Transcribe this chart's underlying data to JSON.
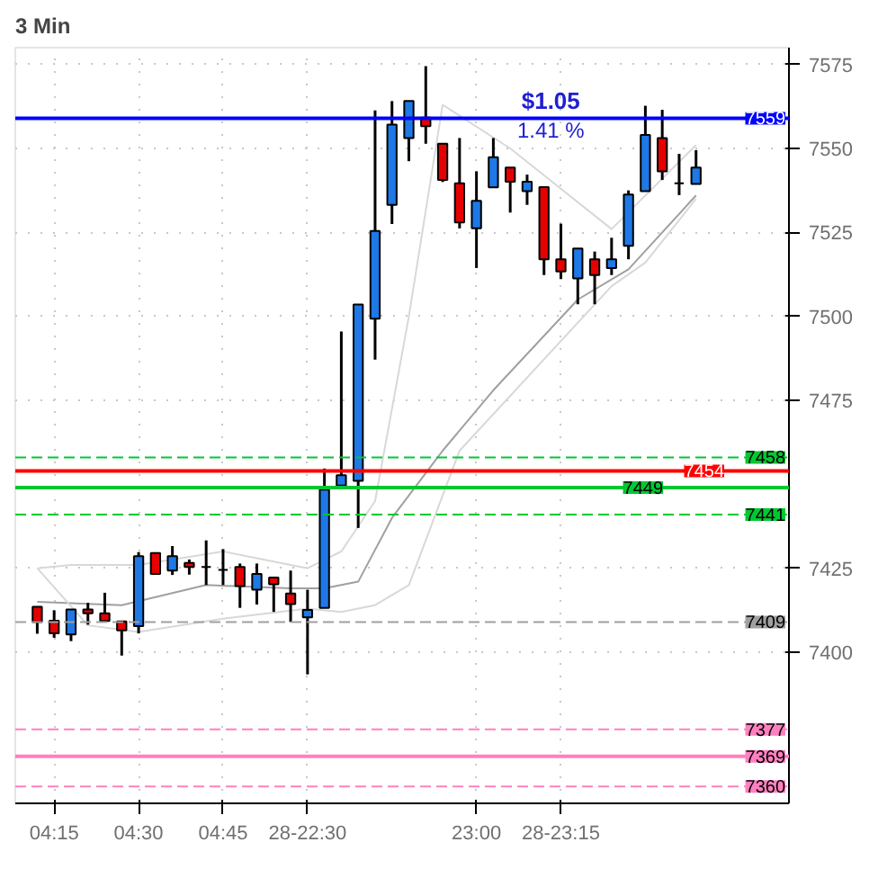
{
  "chart_data": {
    "type": "candlestick",
    "title": "3 Min",
    "categories": [
      null,
      "04:15",
      null,
      null,
      null,
      null,
      "04:30",
      null,
      null,
      null,
      null,
      "04:45",
      null,
      null,
      null,
      null,
      "28-22:30",
      null,
      null,
      null,
      null,
      null,
      null,
      null,
      null,
      null,
      "23:00",
      null,
      null,
      null,
      null,
      "28-23:15",
      null,
      null,
      null,
      null,
      null,
      null,
      null,
      null
    ],
    "ohlc": [
      [
        7413.5,
        7413.5,
        7405.5,
        7409
      ],
      [
        7409.4,
        7412.5,
        7404.3,
        7405.6
      ],
      [
        7405.3,
        7412.7,
        7403.3,
        7412.7
      ],
      [
        7412.7,
        7414.7,
        7408.2,
        7411.6
      ],
      [
        7411.6,
        7417.7,
        7409.3,
        7409.3
      ],
      [
        7409.2,
        7409.2,
        7399,
        7406.5
      ],
      [
        7407.8,
        7429.8,
        7405.6,
        7428.6
      ],
      [
        7429.5,
        7429.5,
        7423.3,
        7423.3
      ],
      [
        7424.3,
        7431.6,
        7423,
        7428.6
      ],
      [
        7426.6,
        7427.6,
        7423.1,
        7425.4
      ],
      [
        7425.4,
        7433.3,
        7420,
        7425.4
      ],
      [
        7424.5,
        7430.7,
        7420,
        7424.5
      ],
      [
        7425.4,
        7426.4,
        7413.2,
        7419.7
      ],
      [
        7418.6,
        7426.4,
        7414.2,
        7423.3
      ],
      [
        7422.2,
        7422.2,
        7412,
        7420.2
      ],
      [
        7417.5,
        7424.3,
        7409,
        7414.3
      ],
      [
        7410.4,
        7418.6,
        7393.4,
        7412.6
      ],
      [
        7413.2,
        7454.7,
        7413.2,
        7448.4
      ],
      [
        7449.6,
        7495.5,
        7449.6,
        7452.7
      ],
      [
        7451,
        7503.5,
        7437,
        7503.5
      ],
      [
        7499.3,
        7561.3,
        7487.1,
        7525.4
      ],
      [
        7533.2,
        7564.1,
        7527.5,
        7557.1
      ],
      [
        7553.1,
        7564.1,
        7546.2,
        7564.1
      ],
      [
        7559.2,
        7574.5,
        7551.4,
        7556.6
      ],
      [
        7551.4,
        7551.4,
        7540,
        7540.6
      ],
      [
        7539.6,
        7553.1,
        7526.2,
        7528
      ],
      [
        7526.2,
        7543.2,
        7514.4,
        7534.4
      ],
      [
        7538.4,
        7553.1,
        7538.4,
        7547.4
      ],
      [
        7544.3,
        7544.3,
        7530.9,
        7540.1
      ],
      [
        7537.3,
        7542.2,
        7533.2,
        7540.1
      ],
      [
        7538.5,
        7538.5,
        7512.3,
        7517
      ],
      [
        7517,
        7527.6,
        7511.1,
        7513.4
      ],
      [
        7511.3,
        7520.2,
        7503.6,
        7520.2
      ],
      [
        7517,
        7519.3,
        7503.6,
        7512.3
      ],
      [
        7514.4,
        7523.4,
        7512.3,
        7517
      ],
      [
        7521,
        7537.5,
        7517,
        7536.3
      ],
      [
        7537.3,
        7562.7,
        7537.3,
        7554
      ],
      [
        7553.1,
        7561.5,
        7540.6,
        7543.2
      ],
      [
        7539.6,
        7548.4,
        7536.1,
        7539.6
      ],
      [
        7539.4,
        7549.5,
        7539.4,
        7544.3
      ]
    ],
    "colors": [
      "#e60000",
      "#e60000",
      "#1e78e6",
      "#e60000",
      "#e60000",
      "#e60000",
      "#1e78e6",
      "#e60000",
      "#1e78e6",
      "#e60000",
      "#000000",
      "#000000",
      "#e60000",
      "#1e78e6",
      "#e60000",
      "#e60000",
      "#1e78e6",
      "#1e78e6",
      "#1e78e6",
      "#1e78e6",
      "#1e78e6",
      "#1e78e6",
      "#1e78e6",
      "#e60000",
      "#e60000",
      "#e60000",
      "#1e78e6",
      "#1e78e6",
      "#e60000",
      "#1e78e6",
      "#e60000",
      "#e60000",
      "#1e78e6",
      "#e60000",
      "#1e78e6",
      "#1e78e6",
      "#1e78e6",
      "#e60000",
      "#000000",
      "#1e78e6"
    ],
    "series": [
      {
        "type": "line",
        "color": "#a0a0a0",
        "values": [
          7415,
          null,
          null,
          null,
          null,
          7414,
          null,
          null,
          null,
          null,
          7420,
          null,
          null,
          null,
          null,
          7419,
          null,
          7419,
          null,
          7421,
          null,
          7440,
          null,
          null,
          7460,
          null,
          null,
          7478,
          null,
          null,
          null,
          null,
          7505,
          null,
          null,
          7514,
          null,
          null,
          null,
          7536
        ]
      },
      {
        "type": "line",
        "color": "#d8d8d8",
        "values": [
          7425,
          null,
          7426,
          null,
          null,
          null,
          7426,
          null,
          null,
          null,
          null,
          7430,
          null,
          null,
          null,
          null,
          7425,
          null,
          7430,
          null,
          7445,
          null,
          7500,
          null,
          7563,
          null,
          null,
          null,
          7550,
          null,
          null,
          null,
          null,
          null,
          7526,
          null,
          null,
          null,
          null,
          7551
        ]
      },
      {
        "type": "line",
        "color": "#d8d8d8",
        "values": [
          7425,
          null,
          null,
          7408,
          null,
          null,
          7406,
          null,
          null,
          null,
          null,
          7410,
          null,
          null,
          null,
          null,
          7413,
          null,
          7412,
          null,
          7414,
          null,
          7420,
          null,
          null,
          7460,
          null,
          null,
          null,
          null,
          null,
          null,
          null,
          null,
          7509,
          null,
          7516,
          null,
          null,
          7535
        ]
      }
    ],
    "ylim": [
      7355,
      7580
    ],
    "yticks": [
      7400,
      7425,
      7475,
      7500,
      7525,
      7550,
      7575
    ],
    "ref_lines": [
      {
        "axis": "y",
        "value": 7559,
        "label": "7559",
        "color": "#0000ff",
        "line_style": "solid"
      },
      {
        "axis": "y",
        "value": 7458,
        "label": "7458",
        "color": "#00c832",
        "line_style": "dashed"
      },
      {
        "axis": "y",
        "value": 7454,
        "label": "7454",
        "color": "#ff0000",
        "line_style": "solid"
      },
      {
        "axis": "y",
        "value": 7449,
        "label": "7449",
        "color": "#00c832",
        "line_style": "solid"
      },
      {
        "axis": "y",
        "value": 7441,
        "label": "7441",
        "color": "#00c832",
        "line_style": "dashed"
      },
      {
        "axis": "y",
        "value": 7409,
        "label": "7409",
        "color": "#a0a0a0",
        "line_style": "dashed"
      },
      {
        "axis": "y",
        "value": 7377,
        "label": "7377",
        "color": "#ff80c0",
        "line_style": "dashed"
      },
      {
        "axis": "y",
        "value": 7369,
        "label": "7369",
        "color": "#ff80c0",
        "line_style": "solid"
      },
      {
        "axis": "y",
        "value": 7360,
        "label": "7360",
        "color": "#ff80c0",
        "line_style": "dashed"
      }
    ],
    "annotations": [
      "$1.05",
      "1.41 %"
    ],
    "grid": true
  }
}
